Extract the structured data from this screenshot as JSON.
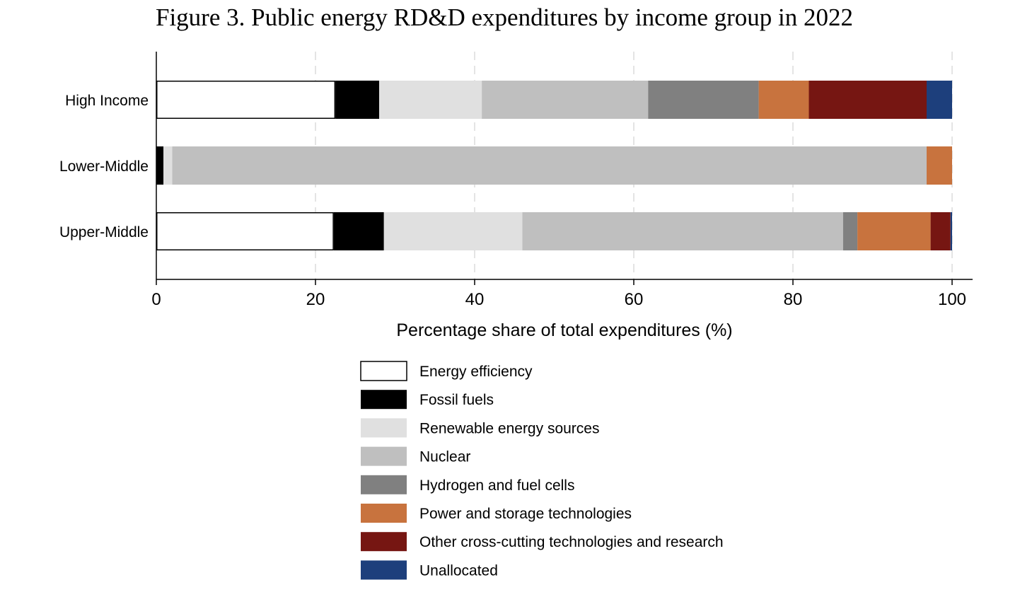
{
  "chart_data": {
    "type": "bar",
    "orientation": "horizontal",
    "stacked": true,
    "title": "Figure 3. Public energy RD&D expenditures by income group in 2022",
    "xlabel": "Percentage share of total expenditures (%)",
    "ylabel": "",
    "xlim": [
      0,
      100
    ],
    "xticks": [
      "0",
      "20",
      "40",
      "60",
      "80",
      "100"
    ],
    "grid": true,
    "legend_position": "bottom",
    "categories": [
      "High Income",
      "Lower-Middle",
      "Upper-Middle"
    ],
    "series": [
      {
        "name": "Energy efficiency",
        "color": "#ffffff",
        "values": [
          22.5,
          0.0,
          22.3
        ]
      },
      {
        "name": "Fossil fuels",
        "color": "#000000",
        "values": [
          5.5,
          0.9,
          6.3
        ]
      },
      {
        "name": "Renewable energy sources",
        "color": "#e0e0e0",
        "values": [
          12.9,
          1.1,
          17.4
        ]
      },
      {
        "name": "Nuclear",
        "color": "#bfbfbf",
        "values": [
          20.9,
          94.8,
          40.3
        ]
      },
      {
        "name": "Hydrogen and fuel cells",
        "color": "#808080",
        "values": [
          13.9,
          0.0,
          1.8
        ]
      },
      {
        "name": "Power and storage technologies",
        "color": "#c8733e",
        "values": [
          6.3,
          3.2,
          9.2
        ]
      },
      {
        "name": "Other cross-cutting technologies and research",
        "color": "#761612",
        "values": [
          14.8,
          0.0,
          2.5
        ]
      },
      {
        "name": "Unallocated",
        "color": "#1d3f7c",
        "values": [
          3.2,
          0.0,
          0.2
        ]
      }
    ]
  }
}
